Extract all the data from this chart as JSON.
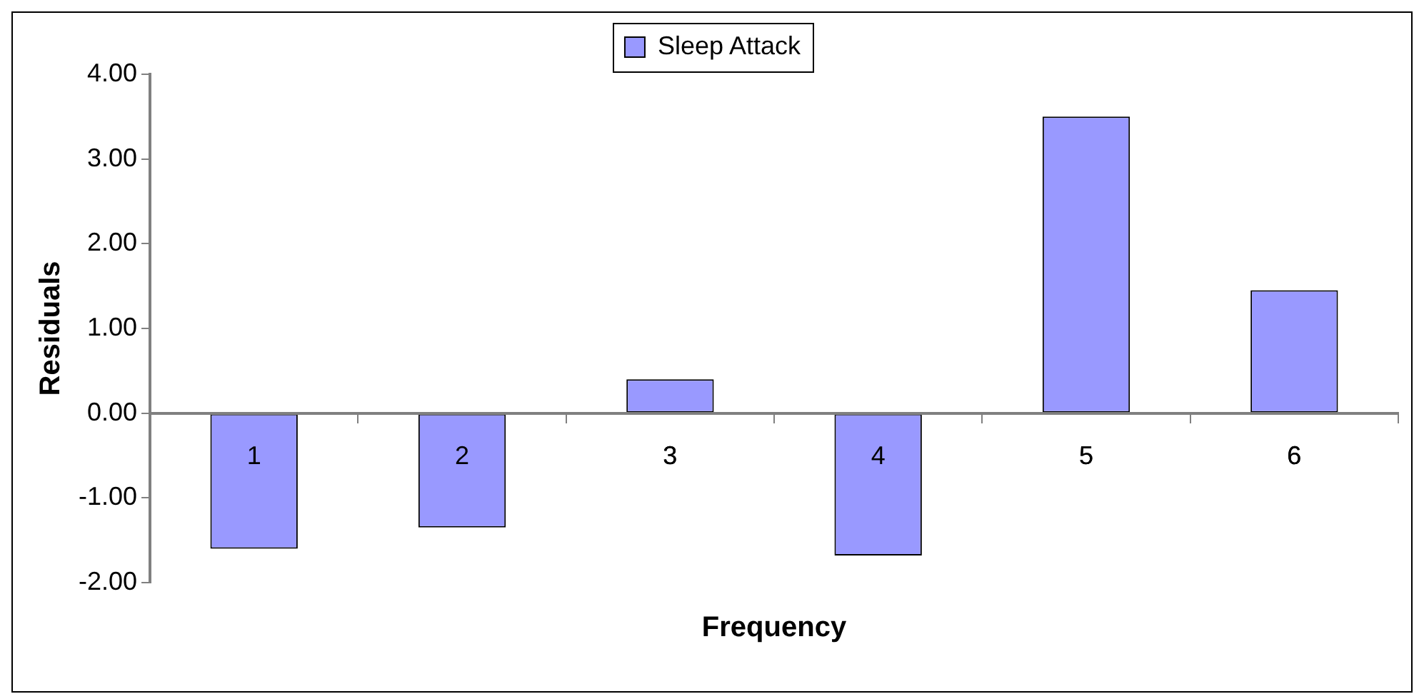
{
  "chart_data": {
    "type": "bar",
    "xlabel": "Frequency",
    "ylabel": "Residuals",
    "categories": [
      "1",
      "2",
      "3",
      "4",
      "5",
      "6"
    ],
    "series": [
      {
        "name": "Sleep Attack",
        "color": "#9999ff",
        "values": [
          -1.6,
          -1.35,
          0.4,
          -1.68,
          3.5,
          1.45
        ]
      }
    ],
    "ylim": [
      -2,
      4
    ],
    "yticks": [
      {
        "value": -2,
        "label": "-2.00"
      },
      {
        "value": -1,
        "label": "-1.00"
      },
      {
        "value": 0,
        "label": "0.00"
      },
      {
        "value": 1,
        "label": "1.00"
      },
      {
        "value": 2,
        "label": "2.00"
      },
      {
        "value": 3,
        "label": "3.00"
      },
      {
        "value": 4,
        "label": "4.00"
      }
    ],
    "grid": false,
    "legend": "top"
  }
}
